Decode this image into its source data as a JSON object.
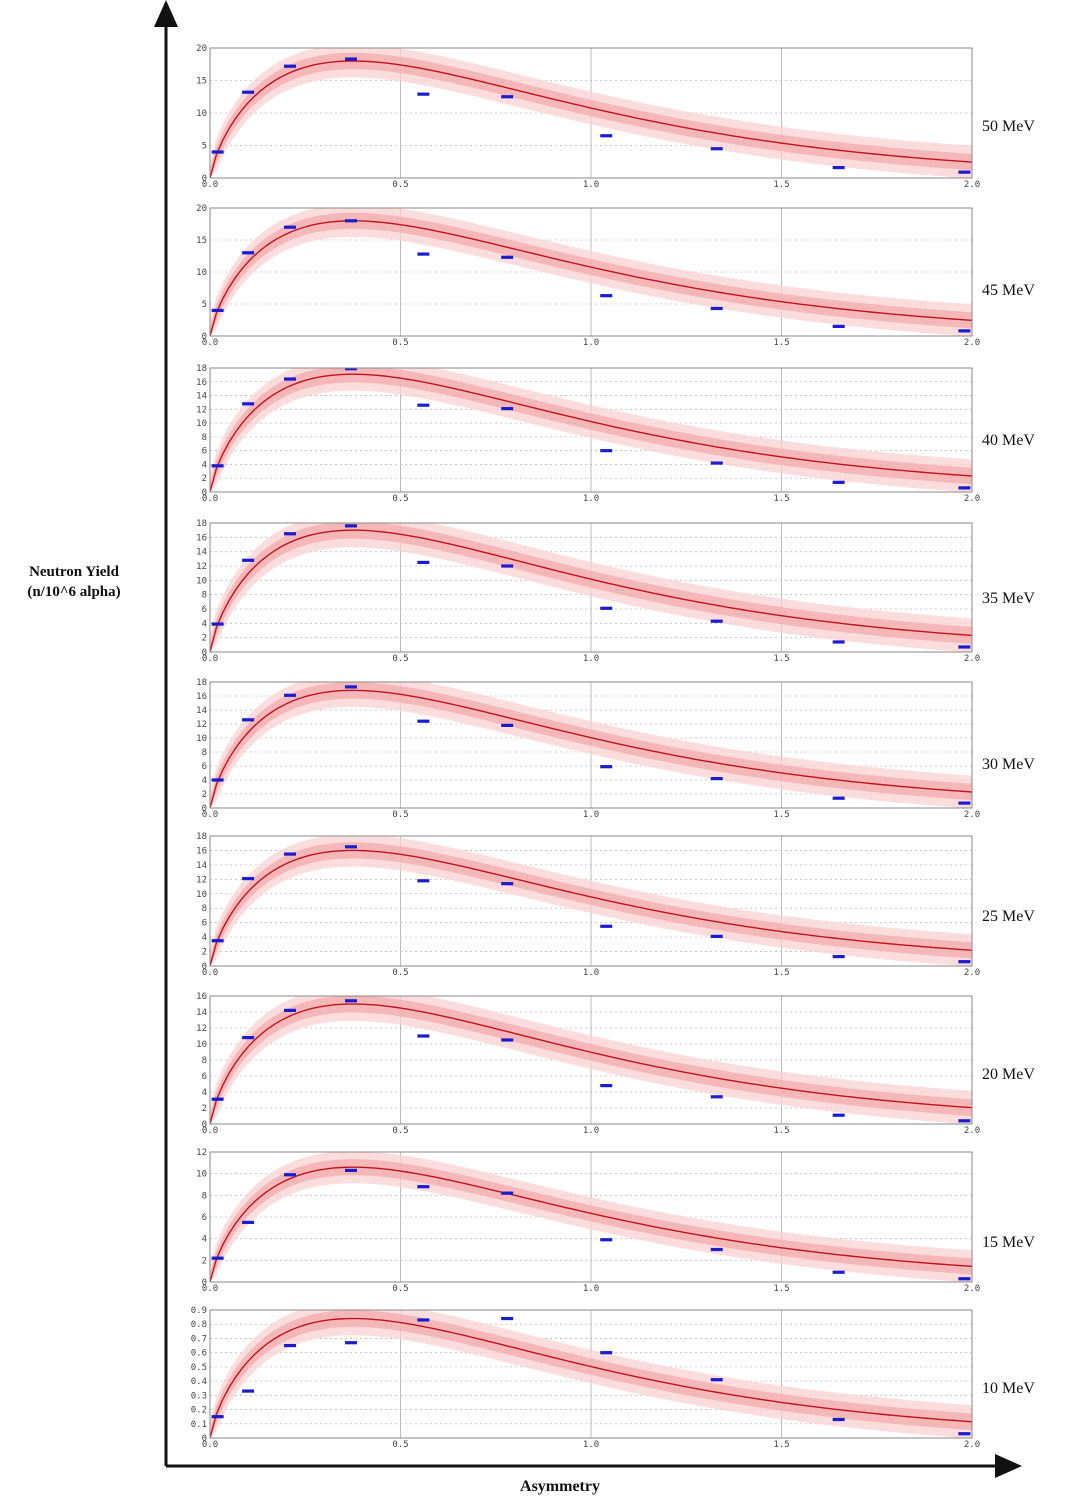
{
  "ylabel_line1": "Neutron Yield",
  "ylabel_line2": "(n/10^6 alpha)",
  "xlabel": "Asymmetry",
  "colors": {
    "fit": "#c0141c",
    "band_inner": "#f4a6a9",
    "band_outer": "#fbd2d3",
    "data": "#1b1bd0",
    "grid": "#bdbdbd"
  },
  "chart_data": [
    {
      "type": "line",
      "label": "50 MeV",
      "xlim": [
        0,
        2
      ],
      "ylim": [
        0,
        20
      ],
      "yticks": [
        0,
        5,
        10,
        15,
        20
      ],
      "xticks": [
        0,
        0.5,
        1,
        1.5,
        2
      ],
      "xticklabels": [
        "0.0",
        "0.5",
        "1.0",
        "1.5",
        "2.0"
      ],
      "grid": true,
      "fit_peak": 18,
      "data_x": [
        0.02,
        0.1,
        0.21,
        0.37,
        0.56,
        0.78,
        1.04,
        1.33,
        1.65,
        1.98
      ],
      "data_y": [
        4.0,
        13.2,
        17.2,
        18.3,
        12.9,
        12.5,
        6.5,
        4.5,
        1.6,
        0.9
      ]
    },
    {
      "type": "line",
      "label": "45 MeV",
      "xlim": [
        0,
        2
      ],
      "ylim": [
        0,
        20
      ],
      "yticks": [
        0,
        5,
        10,
        15,
        20
      ],
      "xticks": [
        0,
        0.5,
        1,
        1.5,
        2
      ],
      "xticklabels": [
        "0.0",
        "0.5",
        "1.0",
        "1.5",
        "2.0"
      ],
      "grid": true,
      "fit_peak": 18,
      "data_x": [
        0.02,
        0.1,
        0.21,
        0.37,
        0.56,
        0.78,
        1.04,
        1.33,
        1.65,
        1.98
      ],
      "data_y": [
        4.0,
        13.0,
        17.0,
        18.0,
        12.8,
        12.3,
        6.3,
        4.3,
        1.5,
        0.8
      ]
    },
    {
      "type": "line",
      "label": "40 MeV",
      "xlim": [
        0,
        2
      ],
      "ylim": [
        0,
        18
      ],
      "yticks": [
        0,
        2,
        4,
        6,
        8,
        10,
        12,
        14,
        16,
        18
      ],
      "xticks": [
        0,
        0.5,
        1,
        1.5,
        2
      ],
      "xticklabels": [
        "0.0",
        "0.5",
        "1.0",
        "1.5",
        "2.0"
      ],
      "grid": true,
      "fit_peak": 17.1,
      "data_x": [
        0.02,
        0.1,
        0.21,
        0.37,
        0.56,
        0.78,
        1.04,
        1.33,
        1.65,
        1.98
      ],
      "data_y": [
        3.8,
        12.8,
        16.4,
        17.9,
        12.6,
        12.1,
        6.0,
        4.2,
        1.4,
        0.6
      ]
    },
    {
      "type": "line",
      "label": "35 MeV",
      "xlim": [
        0,
        2
      ],
      "ylim": [
        0,
        18
      ],
      "yticks": [
        0,
        2,
        4,
        6,
        8,
        10,
        12,
        14,
        16,
        18
      ],
      "xticks": [
        0,
        0.5,
        1,
        1.5,
        2
      ],
      "xticklabels": [
        "0.0",
        "0.5",
        "1.0",
        "1.5",
        "2.0"
      ],
      "grid": true,
      "fit_peak": 17.0,
      "data_x": [
        0.02,
        0.1,
        0.21,
        0.37,
        0.56,
        0.78,
        1.04,
        1.33,
        1.65,
        1.98
      ],
      "data_y": [
        3.9,
        12.8,
        16.5,
        17.6,
        12.5,
        12.0,
        6.1,
        4.3,
        1.4,
        0.7
      ]
    },
    {
      "type": "line",
      "label": "30 MeV",
      "xlim": [
        0,
        2
      ],
      "ylim": [
        0,
        18
      ],
      "yticks": [
        0,
        2,
        4,
        6,
        8,
        10,
        12,
        14,
        16,
        18
      ],
      "xticks": [
        0,
        0.5,
        1,
        1.5,
        2
      ],
      "xticklabels": [
        "0.0",
        "0.5",
        "1.0",
        "1.5",
        "2.0"
      ],
      "grid": true,
      "fit_peak": 16.8,
      "data_x": [
        0.02,
        0.1,
        0.21,
        0.37,
        0.56,
        0.78,
        1.04,
        1.33,
        1.65,
        1.98
      ],
      "data_y": [
        4.0,
        12.6,
        16.1,
        17.3,
        12.4,
        11.8,
        5.9,
        4.2,
        1.4,
        0.7
      ]
    },
    {
      "type": "line",
      "label": "25 MeV",
      "xlim": [
        0,
        2
      ],
      "ylim": [
        0,
        18
      ],
      "yticks": [
        0,
        2,
        4,
        6,
        8,
        10,
        12,
        14,
        16,
        18
      ],
      "xticks": [
        0,
        0.5,
        1,
        1.5,
        2
      ],
      "xticklabels": [
        "0.0",
        "0.5",
        "1.0",
        "1.5",
        "2.0"
      ],
      "grid": true,
      "fit_peak": 16.0,
      "data_x": [
        0.02,
        0.1,
        0.21,
        0.37,
        0.56,
        0.78,
        1.04,
        1.33,
        1.65,
        1.98
      ],
      "data_y": [
        3.5,
        12.1,
        15.5,
        16.5,
        11.8,
        11.4,
        5.5,
        4.1,
        1.3,
        0.6
      ]
    },
    {
      "type": "line",
      "label": "20 MeV",
      "xlim": [
        0,
        2
      ],
      "ylim": [
        0,
        16
      ],
      "yticks": [
        0,
        2,
        4,
        6,
        8,
        10,
        12,
        14,
        16
      ],
      "xticks": [
        0,
        0.5,
        1,
        1.5,
        2
      ],
      "xticklabels": [
        "0.0",
        "0.5",
        "1.0",
        "1.5",
        "2.0"
      ],
      "grid": true,
      "fit_peak": 15.0,
      "data_x": [
        0.02,
        0.1,
        0.21,
        0.37,
        0.56,
        0.78,
        1.04,
        1.33,
        1.65,
        1.98
      ],
      "data_y": [
        3.1,
        10.8,
        14.2,
        15.4,
        11.0,
        10.5,
        4.8,
        3.4,
        1.1,
        0.4
      ]
    },
    {
      "type": "line",
      "label": "15 MeV",
      "xlim": [
        0,
        2
      ],
      "ylim": [
        0,
        12
      ],
      "yticks": [
        0,
        2,
        4,
        6,
        8,
        10,
        12
      ],
      "xticks": [
        0,
        0.5,
        1,
        1.5,
        2
      ],
      "xticklabels": [
        "0.0",
        "0.5",
        "1.0",
        "1.5",
        "2.0"
      ],
      "grid": true,
      "fit_peak": 10.6,
      "data_x": [
        0.02,
        0.1,
        0.21,
        0.37,
        0.56,
        0.78,
        1.04,
        1.33,
        1.65,
        1.98
      ],
      "data_y": [
        2.2,
        5.5,
        9.9,
        10.3,
        8.8,
        8.2,
        3.9,
        3.0,
        0.9,
        0.3
      ]
    },
    {
      "type": "line",
      "label": "10 MeV",
      "xlim": [
        0,
        2
      ],
      "ylim": [
        0,
        0.9
      ],
      "yticks": [
        0,
        0.1,
        0.2,
        0.3,
        0.4,
        0.5,
        0.6,
        0.7,
        0.8,
        0.9
      ],
      "xticks": [
        0,
        0.5,
        1,
        1.5,
        2
      ],
      "xticklabels": [
        "0.0",
        "0.5",
        "1.0",
        "1.5",
        "2.0"
      ],
      "grid": true,
      "fit_peak": 0.84,
      "data_x": [
        0.02,
        0.1,
        0.21,
        0.37,
        0.56,
        0.78,
        1.04,
        1.33,
        1.65,
        1.98
      ],
      "data_y": [
        0.15,
        0.33,
        0.65,
        0.67,
        0.83,
        0.84,
        0.6,
        0.41,
        0.13,
        0.03
      ]
    }
  ]
}
